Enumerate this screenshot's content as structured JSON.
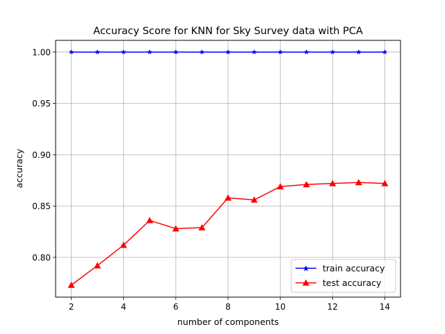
{
  "chart_data": {
    "type": "line",
    "title": "Accuracy Score for KNN for Sky Survey data with PCA",
    "xlabel": "number of components",
    "ylabel": "accuracy",
    "x": [
      2,
      3,
      4,
      5,
      6,
      7,
      8,
      9,
      10,
      11,
      12,
      13,
      14
    ],
    "xlim": [
      1.4,
      14.6
    ],
    "ylim": [
      0.7613,
      1.0114
    ],
    "xticks": [
      2,
      4,
      6,
      8,
      10,
      12,
      14
    ],
    "xtick_labels": [
      "2",
      "4",
      "6",
      "8",
      "10",
      "12",
      "14"
    ],
    "yticks": [
      0.8,
      0.85,
      0.9,
      0.95,
      1.0
    ],
    "ytick_labels": [
      "0.80",
      "0.85",
      "0.90",
      "0.95",
      "1.00"
    ],
    "grid": true,
    "legend_position": "lower-right",
    "series": [
      {
        "name": "train accuracy",
        "color": "#0000ff",
        "marker": "star",
        "values": [
          1.0,
          1.0,
          1.0,
          1.0,
          1.0,
          1.0,
          1.0,
          1.0,
          1.0,
          1.0,
          1.0,
          1.0,
          1.0
        ]
      },
      {
        "name": "test accuracy",
        "color": "#ff0000",
        "marker": "triangle",
        "values": [
          0.773,
          0.792,
          0.812,
          0.836,
          0.828,
          0.829,
          0.858,
          0.856,
          0.869,
          0.871,
          0.872,
          0.873,
          0.872
        ]
      }
    ]
  }
}
